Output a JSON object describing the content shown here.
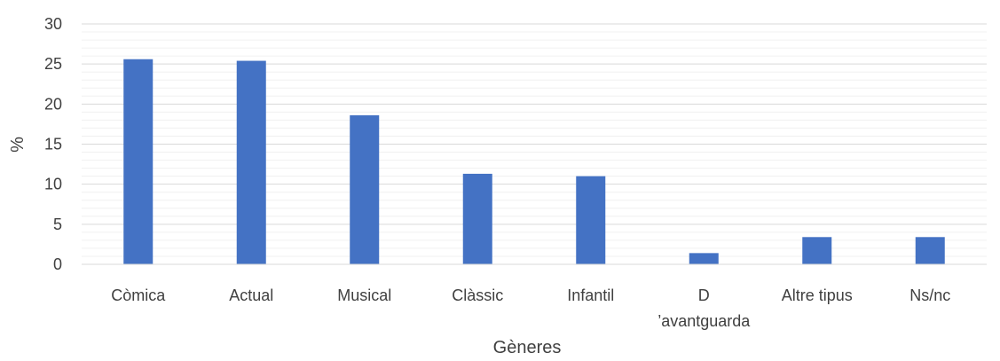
{
  "chart_data": {
    "type": "bar",
    "categories": [
      [
        "Còmica"
      ],
      [
        "Actual"
      ],
      [
        "Musical"
      ],
      [
        "Clàssic"
      ],
      [
        "Infantil"
      ],
      [
        "D",
        "’avantguarda"
      ],
      [
        "Altre tipus"
      ],
      [
        "Ns/nc"
      ]
    ],
    "values": [
      25.6,
      25.4,
      18.6,
      11.3,
      11.0,
      1.4,
      3.4,
      3.4
    ],
    "ylim": [
      0,
      30
    ],
    "yticks": [
      0,
      5,
      10,
      15,
      20,
      25,
      30
    ],
    "minor_grid_step": 1,
    "xlabel": "Gèneres",
    "ylabel": "%",
    "grid": true,
    "bar_color": "#4472C4",
    "major_grid_color": "#d9d9d9",
    "minor_grid_color": "#f0f0f0"
  }
}
